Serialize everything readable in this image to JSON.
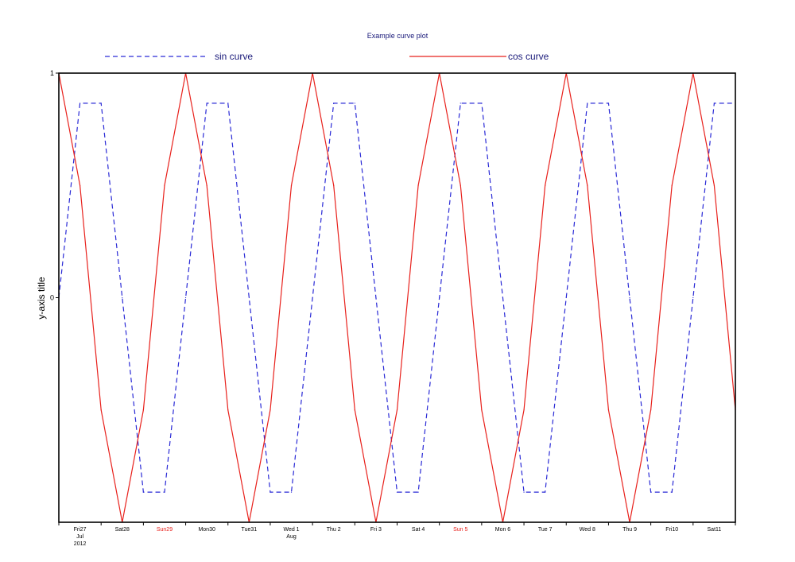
{
  "chart_data": {
    "type": "line",
    "title": "Example curve plot",
    "ylabel": "y-axis title",
    "xlabel": "",
    "ylim": [
      -1,
      1
    ],
    "y_ticks": [
      {
        "value": 1,
        "label": "1"
      },
      {
        "value": 0,
        "label": "0"
      }
    ],
    "grid": false,
    "legend": "top",
    "x_domain": [
      "2012-07-27",
      "2012-08-12"
    ],
    "x_ticks": [
      {
        "date": "2012-07-27",
        "lines": [
          "Fri27",
          "Jul",
          "2012"
        ],
        "weekend": false
      },
      {
        "date": "2012-07-28",
        "lines": [
          "Sat28"
        ],
        "weekend": false
      },
      {
        "date": "2012-07-29",
        "lines": [
          "Sun29"
        ],
        "weekend": true
      },
      {
        "date": "2012-07-30",
        "lines": [
          "Mon30"
        ],
        "weekend": false
      },
      {
        "date": "2012-07-31",
        "lines": [
          "Tue31"
        ],
        "weekend": false
      },
      {
        "date": "2012-08-01",
        "lines": [
          "Wed 1",
          "Aug"
        ],
        "weekend": false
      },
      {
        "date": "2012-08-02",
        "lines": [
          "Thu 2"
        ],
        "weekend": false
      },
      {
        "date": "2012-08-03",
        "lines": [
          "Fri 3"
        ],
        "weekend": false
      },
      {
        "date": "2012-08-04",
        "lines": [
          "Sat 4"
        ],
        "weekend": false
      },
      {
        "date": "2012-08-05",
        "lines": [
          "Sun 5"
        ],
        "weekend": true
      },
      {
        "date": "2012-08-06",
        "lines": [
          "Mon 6"
        ],
        "weekend": false
      },
      {
        "date": "2012-08-07",
        "lines": [
          "Tue 7"
        ],
        "weekend": false
      },
      {
        "date": "2012-08-08",
        "lines": [
          "Wed 8"
        ],
        "weekend": false
      },
      {
        "date": "2012-08-09",
        "lines": [
          "Thu 9"
        ],
        "weekend": false
      },
      {
        "date": "2012-08-10",
        "lines": [
          "Fri10"
        ],
        "weekend": false
      },
      {
        "date": "2012-08-11",
        "lines": [
          "Sat11"
        ],
        "weekend": false
      }
    ],
    "series": [
      {
        "name": "sin curve",
        "color": "#2a2ad6",
        "style": "dashed",
        "points": [
          [
            "2012-07-27T00:00",
            0.0
          ],
          [
            "2012-07-27T12:00",
            0.866
          ],
          [
            "2012-07-28T00:00",
            0.866
          ],
          [
            "2012-07-28T12:00",
            0.0
          ],
          [
            "2012-07-29T00:00",
            -0.866
          ],
          [
            "2012-07-29T12:00",
            -0.866
          ],
          [
            "2012-07-30T00:00",
            0.0
          ],
          [
            "2012-07-30T12:00",
            0.866
          ],
          [
            "2012-07-31T00:00",
            0.866
          ],
          [
            "2012-07-31T12:00",
            0.0
          ],
          [
            "2012-08-01T00:00",
            -0.866
          ],
          [
            "2012-08-01T12:00",
            -0.866
          ],
          [
            "2012-08-02T00:00",
            0.0
          ],
          [
            "2012-08-02T12:00",
            0.866
          ],
          [
            "2012-08-03T00:00",
            0.866
          ],
          [
            "2012-08-03T12:00",
            0.0
          ],
          [
            "2012-08-04T00:00",
            -0.866
          ],
          [
            "2012-08-04T12:00",
            -0.866
          ],
          [
            "2012-08-05T00:00",
            0.0
          ],
          [
            "2012-08-05T12:00",
            0.866
          ],
          [
            "2012-08-06T00:00",
            0.866
          ],
          [
            "2012-08-06T12:00",
            0.0
          ],
          [
            "2012-08-07T00:00",
            -0.866
          ],
          [
            "2012-08-07T12:00",
            -0.866
          ],
          [
            "2012-08-08T00:00",
            0.0
          ],
          [
            "2012-08-08T12:00",
            0.866
          ],
          [
            "2012-08-09T00:00",
            0.866
          ],
          [
            "2012-08-09T12:00",
            0.0
          ],
          [
            "2012-08-10T00:00",
            -0.866
          ],
          [
            "2012-08-10T12:00",
            -0.866
          ],
          [
            "2012-08-11T00:00",
            0.0
          ],
          [
            "2012-08-11T12:00",
            0.866
          ],
          [
            "2012-08-12T00:00",
            0.866
          ]
        ]
      },
      {
        "name": "cos curve",
        "color": "#e8211c",
        "style": "solid",
        "points": [
          [
            "2012-07-27T00:00",
            1.0
          ],
          [
            "2012-07-27T12:00",
            0.5
          ],
          [
            "2012-07-28T00:00",
            -0.5
          ],
          [
            "2012-07-28T12:00",
            -1.0
          ],
          [
            "2012-07-29T00:00",
            -0.5
          ],
          [
            "2012-07-29T12:00",
            0.5
          ],
          [
            "2012-07-30T00:00",
            1.0
          ],
          [
            "2012-07-30T12:00",
            0.5
          ],
          [
            "2012-07-31T00:00",
            -0.5
          ],
          [
            "2012-07-31T12:00",
            -1.0
          ],
          [
            "2012-08-01T00:00",
            -0.5
          ],
          [
            "2012-08-01T12:00",
            0.5
          ],
          [
            "2012-08-02T00:00",
            1.0
          ],
          [
            "2012-08-02T12:00",
            0.5
          ],
          [
            "2012-08-03T00:00",
            -0.5
          ],
          [
            "2012-08-03T12:00",
            -1.0
          ],
          [
            "2012-08-04T00:00",
            -0.5
          ],
          [
            "2012-08-04T12:00",
            0.5
          ],
          [
            "2012-08-05T00:00",
            1.0
          ],
          [
            "2012-08-05T12:00",
            0.5
          ],
          [
            "2012-08-06T00:00",
            -0.5
          ],
          [
            "2012-08-06T12:00",
            -1.0
          ],
          [
            "2012-08-07T00:00",
            -0.5
          ],
          [
            "2012-08-07T12:00",
            0.5
          ],
          [
            "2012-08-08T00:00",
            1.0
          ],
          [
            "2012-08-08T12:00",
            0.5
          ],
          [
            "2012-08-09T00:00",
            -0.5
          ],
          [
            "2012-08-09T12:00",
            -1.0
          ],
          [
            "2012-08-10T00:00",
            -0.5
          ],
          [
            "2012-08-10T12:00",
            0.5
          ],
          [
            "2012-08-11T00:00",
            1.0
          ],
          [
            "2012-08-11T12:00",
            0.5
          ],
          [
            "2012-08-12T00:00",
            -0.5
          ]
        ]
      }
    ]
  }
}
